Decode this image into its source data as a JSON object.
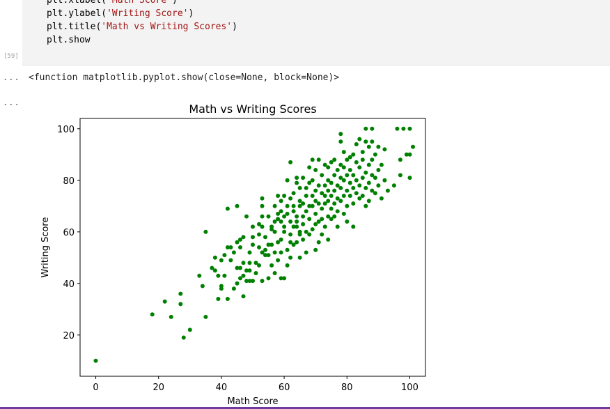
{
  "code_cell": {
    "execution_count": "[59]",
    "lines": [
      {
        "pre": "plt.xlabel(",
        "str": "'Math Score'",
        "post": ")"
      },
      {
        "pre": "plt.ylabel(",
        "str": "'Writing Score'",
        "post": ")"
      },
      {
        "pre": "plt.title(",
        "str": "'Math vs Writing Scores'",
        "post": ")"
      },
      {
        "pre": "plt.show",
        "str": "",
        "post": ""
      }
    ]
  },
  "output": {
    "gutter_1": "...",
    "text": "<function matplotlib.pyplot.show(close=None, block=None)>",
    "gutter_2": "..."
  },
  "colors": {
    "points": "#008000",
    "code_background": "#f3f3f3",
    "string": "#a31515",
    "bottom_bar": "#6f3a9e"
  },
  "chart_data": {
    "type": "scatter",
    "title": "Math vs Writing Scores",
    "xlabel": "Math Score",
    "ylabel": "Writing Score",
    "xlim": [
      -5,
      105
    ],
    "ylim": [
      4,
      104
    ],
    "xticks": [
      0,
      20,
      40,
      60,
      80,
      100
    ],
    "yticks": [
      20,
      40,
      60,
      80,
      100
    ],
    "grid": false,
    "series": [
      {
        "color": "#008000",
        "points": [
          [
            0,
            10
          ],
          [
            18,
            28
          ],
          [
            22,
            33
          ],
          [
            24,
            27
          ],
          [
            27,
            36
          ],
          [
            27,
            32
          ],
          [
            28,
            19
          ],
          [
            30,
            22
          ],
          [
            33,
            43
          ],
          [
            34,
            39
          ],
          [
            35,
            27
          ],
          [
            35,
            60
          ],
          [
            37,
            46
          ],
          [
            38,
            45
          ],
          [
            38,
            50
          ],
          [
            39,
            34
          ],
          [
            39,
            43
          ],
          [
            40,
            49
          ],
          [
            40,
            38
          ],
          [
            40,
            39
          ],
          [
            41,
            51
          ],
          [
            41,
            43
          ],
          [
            42,
            34
          ],
          [
            42,
            54
          ],
          [
            42,
            69
          ],
          [
            43,
            49
          ],
          [
            43,
            54
          ],
          [
            44,
            52
          ],
          [
            44,
            38
          ],
          [
            45,
            70
          ],
          [
            45,
            56
          ],
          [
            45,
            46
          ],
          [
            45,
            40
          ],
          [
            46,
            54
          ],
          [
            46,
            42
          ],
          [
            46,
            46
          ],
          [
            46,
            57
          ],
          [
            47,
            35
          ],
          [
            47,
            58
          ],
          [
            47,
            48
          ],
          [
            47,
            43
          ],
          [
            48,
            41
          ],
          [
            48,
            66
          ],
          [
            48,
            45
          ],
          [
            49,
            48
          ],
          [
            49,
            52
          ],
          [
            49,
            41
          ],
          [
            49,
            45
          ],
          [
            50,
            55
          ],
          [
            50,
            41
          ],
          [
            50,
            58
          ],
          [
            50,
            62
          ],
          [
            51,
            48
          ],
          [
            51,
            44
          ],
          [
            52,
            54
          ],
          [
            52,
            47
          ],
          [
            52,
            59
          ],
          [
            52,
            63
          ],
          [
            53,
            52
          ],
          [
            53,
            66
          ],
          [
            53,
            70
          ],
          [
            53,
            73
          ],
          [
            53,
            41
          ],
          [
            53,
            62
          ],
          [
            54,
            51
          ],
          [
            54,
            53
          ],
          [
            54,
            58
          ],
          [
            55,
            51
          ],
          [
            55,
            42
          ],
          [
            55,
            55
          ],
          [
            55,
            66
          ],
          [
            56,
            47
          ],
          [
            56,
            55
          ],
          [
            56,
            62
          ],
          [
            56,
            61
          ],
          [
            57,
            52
          ],
          [
            57,
            64
          ],
          [
            57,
            70
          ],
          [
            57,
            44
          ],
          [
            57,
            60
          ],
          [
            58,
            49
          ],
          [
            58,
            74
          ],
          [
            58,
            56
          ],
          [
            58,
            65
          ],
          [
            58,
            67
          ],
          [
            59,
            52
          ],
          [
            59,
            42
          ],
          [
            59,
            64
          ],
          [
            59,
            68
          ],
          [
            59,
            72
          ],
          [
            59,
            57
          ],
          [
            60,
            42
          ],
          [
            60,
            62
          ],
          [
            60,
            74
          ],
          [
            60,
            60
          ],
          [
            60,
            66
          ],
          [
            61,
            47
          ],
          [
            61,
            53
          ],
          [
            61,
            67
          ],
          [
            61,
            70
          ],
          [
            61,
            80
          ],
          [
            62,
            50
          ],
          [
            62,
            56
          ],
          [
            62,
            59
          ],
          [
            62,
            64
          ],
          [
            62,
            73
          ],
          [
            62,
            87
          ],
          [
            63,
            55
          ],
          [
            63,
            68
          ],
          [
            63,
            62
          ],
          [
            63,
            70
          ],
          [
            63,
            75
          ],
          [
            64,
            56
          ],
          [
            64,
            62
          ],
          [
            64,
            64
          ],
          [
            64,
            66
          ],
          [
            64,
            81
          ],
          [
            64,
            79
          ],
          [
            65,
            50
          ],
          [
            65,
            59
          ],
          [
            65,
            60
          ],
          [
            65,
            72
          ],
          [
            65,
            77
          ],
          [
            65,
            70
          ],
          [
            66,
            57
          ],
          [
            66,
            63
          ],
          [
            66,
            66
          ],
          [
            66,
            71
          ],
          [
            66,
            81
          ],
          [
            67,
            60
          ],
          [
            67,
            52
          ],
          [
            67,
            68
          ],
          [
            67,
            77
          ],
          [
            67,
            74
          ],
          [
            68,
            65
          ],
          [
            68,
            70
          ],
          [
            68,
            79
          ],
          [
            68,
            85
          ],
          [
            68,
            59
          ],
          [
            69,
            61
          ],
          [
            69,
            70
          ],
          [
            69,
            74
          ],
          [
            69,
            80
          ],
          [
            69,
            88
          ],
          [
            70,
            53
          ],
          [
            70,
            63
          ],
          [
            70,
            67
          ],
          [
            70,
            72
          ],
          [
            70,
            76
          ],
          [
            70,
            84
          ],
          [
            71,
            56
          ],
          [
            71,
            64
          ],
          [
            71,
            71
          ],
          [
            71,
            78
          ],
          [
            71,
            88
          ],
          [
            72,
            65
          ],
          [
            72,
            69
          ],
          [
            72,
            75
          ],
          [
            72,
            59
          ],
          [
            72,
            82
          ],
          [
            73,
            71
          ],
          [
            73,
            74
          ],
          [
            73,
            78
          ],
          [
            73,
            86
          ],
          [
            73,
            62
          ],
          [
            74,
            66
          ],
          [
            74,
            72
          ],
          [
            74,
            76
          ],
          [
            74,
            80
          ],
          [
            74,
            85
          ],
          [
            74,
            57
          ],
          [
            75,
            65
          ],
          [
            75,
            69
          ],
          [
            75,
            74
          ],
          [
            75,
            79
          ],
          [
            75,
            87
          ],
          [
            76,
            66
          ],
          [
            76,
            71
          ],
          [
            76,
            76
          ],
          [
            76,
            82
          ],
          [
            76,
            88
          ],
          [
            77,
            68
          ],
          [
            77,
            73
          ],
          [
            77,
            78
          ],
          [
            77,
            84
          ],
          [
            77,
            62
          ],
          [
            78,
            72
          ],
          [
            78,
            77
          ],
          [
            78,
            81
          ],
          [
            78,
            86
          ],
          [
            78,
            95
          ],
          [
            78,
            98
          ],
          [
            79,
            67
          ],
          [
            79,
            74
          ],
          [
            79,
            80
          ],
          [
            79,
            85
          ],
          [
            79,
            91
          ],
          [
            80,
            70
          ],
          [
            80,
            76
          ],
          [
            80,
            82
          ],
          [
            80,
            88
          ],
          [
            80,
            64
          ],
          [
            81,
            74
          ],
          [
            81,
            79
          ],
          [
            81,
            84
          ],
          [
            81,
            89
          ],
          [
            82,
            71
          ],
          [
            82,
            77
          ],
          [
            82,
            82
          ],
          [
            82,
            90
          ],
          [
            82,
            62
          ],
          [
            83,
            75
          ],
          [
            83,
            80
          ],
          [
            83,
            87
          ],
          [
            83,
            94
          ],
          [
            84,
            73
          ],
          [
            84,
            78
          ],
          [
            84,
            85
          ],
          [
            84,
            96
          ],
          [
            85,
            74
          ],
          [
            85,
            81
          ],
          [
            85,
            88
          ],
          [
            85,
            91
          ],
          [
            86,
            70
          ],
          [
            86,
            77
          ],
          [
            86,
            83
          ],
          [
            86,
            95
          ],
          [
            86,
            100
          ],
          [
            87,
            72
          ],
          [
            87,
            79
          ],
          [
            87,
            86
          ],
          [
            87,
            93
          ],
          [
            88,
            76
          ],
          [
            88,
            82
          ],
          [
            88,
            88
          ],
          [
            88,
            95
          ],
          [
            88,
            100
          ],
          [
            89,
            75
          ],
          [
            89,
            81
          ],
          [
            89,
            90
          ],
          [
            90,
            78
          ],
          [
            90,
            84
          ],
          [
            90,
            93
          ],
          [
            91,
            73
          ],
          [
            91,
            86
          ],
          [
            92,
            80
          ],
          [
            92,
            92
          ],
          [
            93,
            76
          ],
          [
            95,
            78
          ],
          [
            96,
            100
          ],
          [
            97,
            82
          ],
          [
            97,
            88
          ],
          [
            98,
            100
          ],
          [
            99,
            90
          ],
          [
            100,
            81
          ],
          [
            100,
            90
          ],
          [
            100,
            100
          ],
          [
            101,
            93
          ]
        ]
      }
    ]
  }
}
